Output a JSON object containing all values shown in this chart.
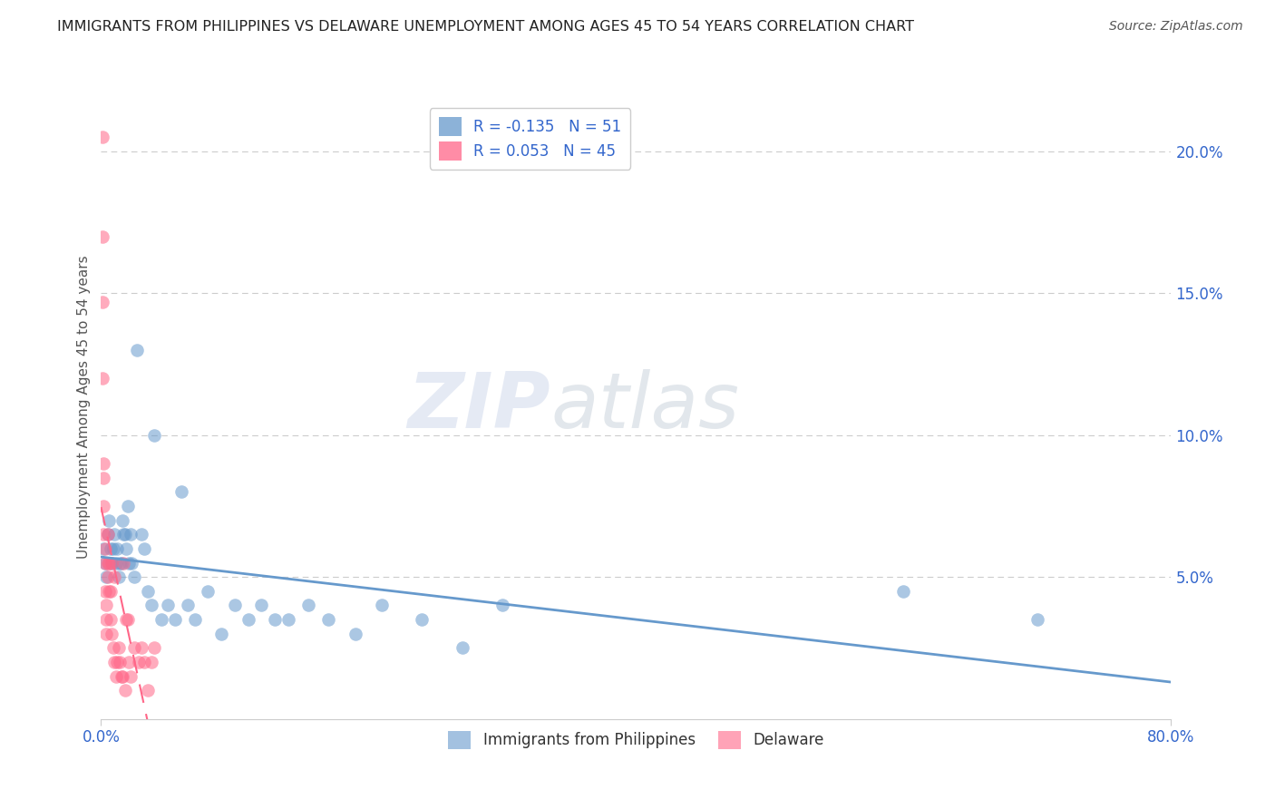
{
  "title": "IMMIGRANTS FROM PHILIPPINES VS DELAWARE UNEMPLOYMENT AMONG AGES 45 TO 54 YEARS CORRELATION CHART",
  "source": "Source: ZipAtlas.com",
  "ylabel": "Unemployment Among Ages 45 to 54 years",
  "xlim": [
    0.0,
    0.8
  ],
  "ylim": [
    0.0,
    0.22
  ],
  "yticks_right": [
    0.05,
    0.1,
    0.15,
    0.2
  ],
  "ytick_labels_right": [
    "5.0%",
    "10.0%",
    "15.0%",
    "20.0%"
  ],
  "blue_color": "#6699CC",
  "pink_color": "#FF6688",
  "blue_R": -0.135,
  "blue_N": 51,
  "pink_R": 0.053,
  "pink_N": 45,
  "legend_label_blue": "Immigrants from Philippines",
  "legend_label_pink": "Delaware",
  "watermark_zip": "ZIP",
  "watermark_atlas": "atlas",
  "blue_points_x": [
    0.002,
    0.003,
    0.004,
    0.005,
    0.006,
    0.007,
    0.008,
    0.009,
    0.01,
    0.011,
    0.012,
    0.013,
    0.014,
    0.015,
    0.016,
    0.017,
    0.018,
    0.019,
    0.02,
    0.021,
    0.022,
    0.023,
    0.025,
    0.027,
    0.03,
    0.032,
    0.035,
    0.038,
    0.04,
    0.045,
    0.05,
    0.055,
    0.06,
    0.065,
    0.07,
    0.08,
    0.09,
    0.1,
    0.11,
    0.12,
    0.13,
    0.14,
    0.155,
    0.17,
    0.19,
    0.21,
    0.24,
    0.27,
    0.3,
    0.6,
    0.7
  ],
  "blue_points_y": [
    0.06,
    0.055,
    0.05,
    0.065,
    0.07,
    0.06,
    0.055,
    0.06,
    0.065,
    0.055,
    0.06,
    0.05,
    0.055,
    0.055,
    0.07,
    0.065,
    0.065,
    0.06,
    0.075,
    0.055,
    0.065,
    0.055,
    0.05,
    0.13,
    0.065,
    0.06,
    0.045,
    0.04,
    0.1,
    0.035,
    0.04,
    0.035,
    0.08,
    0.04,
    0.035,
    0.045,
    0.03,
    0.04,
    0.035,
    0.04,
    0.035,
    0.035,
    0.04,
    0.035,
    0.03,
    0.04,
    0.035,
    0.025,
    0.04,
    0.045,
    0.035
  ],
  "pink_points_x": [
    0.001,
    0.001,
    0.001,
    0.001,
    0.002,
    0.002,
    0.002,
    0.002,
    0.003,
    0.003,
    0.003,
    0.004,
    0.004,
    0.004,
    0.005,
    0.005,
    0.005,
    0.006,
    0.006,
    0.007,
    0.007,
    0.008,
    0.008,
    0.009,
    0.01,
    0.01,
    0.011,
    0.012,
    0.013,
    0.014,
    0.015,
    0.016,
    0.017,
    0.018,
    0.019,
    0.02,
    0.021,
    0.022,
    0.025,
    0.028,
    0.03,
    0.032,
    0.035,
    0.038,
    0.04
  ],
  "pink_points_y": [
    0.205,
    0.17,
    0.147,
    0.12,
    0.09,
    0.085,
    0.075,
    0.065,
    0.06,
    0.055,
    0.045,
    0.04,
    0.035,
    0.03,
    0.065,
    0.055,
    0.05,
    0.055,
    0.045,
    0.045,
    0.035,
    0.055,
    0.03,
    0.025,
    0.05,
    0.02,
    0.015,
    0.02,
    0.025,
    0.02,
    0.015,
    0.015,
    0.055,
    0.01,
    0.035,
    0.035,
    0.02,
    0.015,
    0.025,
    0.02,
    0.025,
    0.02,
    0.01,
    0.02,
    0.025
  ],
  "title_fontsize": 11.5,
  "source_fontsize": 10,
  "axis_color": "#3366CC",
  "axis_label_color": "#555555",
  "grid_color": "#CCCCCC"
}
